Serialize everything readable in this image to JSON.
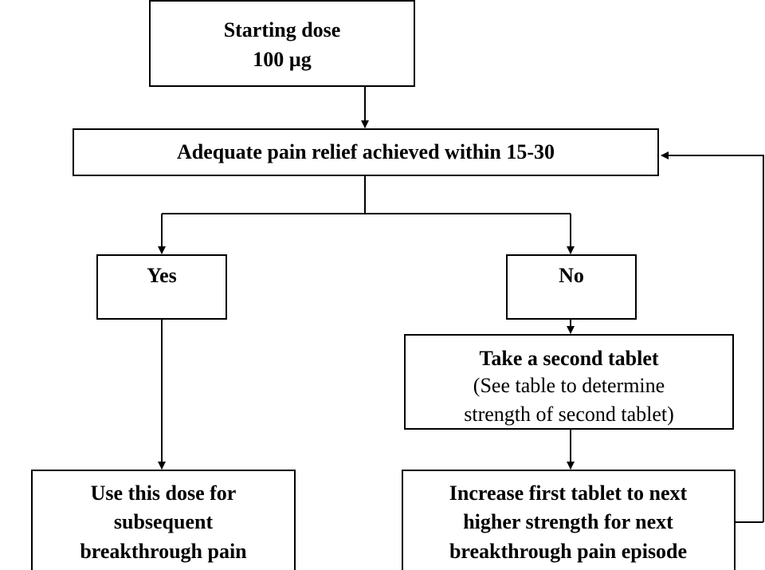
{
  "nodes": [
    {
      "lines": [
        "Starting dose",
        "100 µg"
      ]
    },
    {
      "lines": [
        "Adequate pain relief achieved within 15-30"
      ]
    },
    {
      "lines": [
        "Yes"
      ]
    },
    {
      "lines": [
        "No"
      ]
    },
    {
      "lines": [
        "Take a second tablet",
        "(See table to determine",
        "strength of second tablet)"
      ]
    },
    {
      "lines": [
        "Use this dose for",
        "subsequent",
        "breakthrough pain"
      ]
    },
    {
      "lines": [
        "Increase first tablet to next",
        "higher strength for next",
        "breakthrough pain episode"
      ]
    }
  ]
}
